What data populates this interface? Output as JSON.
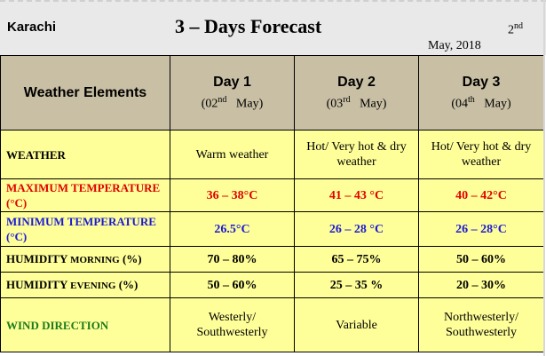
{
  "header": {
    "city": "Karachi",
    "title": "3 – Days Forecast",
    "issue_day": "2",
    "issue_day_suffix": "nd",
    "issue_month_year": "May, 2018"
  },
  "table": {
    "corner_label": "Weather Elements",
    "days": [
      {
        "name": "Day 1",
        "date_num": "02",
        "date_suffix": "nd",
        "month": "May"
      },
      {
        "name": "Day 2",
        "date_num": "03",
        "date_suffix": "rd",
        "month": "May"
      },
      {
        "name": "Day 3",
        "date_num": "04",
        "date_suffix": "th",
        "month": "May"
      }
    ],
    "rows": {
      "weather": {
        "label": "WEATHER",
        "values": [
          "Warm weather",
          "Hot/ Very hot & dry  weather",
          "Hot/ Very hot & dry  weather"
        ]
      },
      "max_temp": {
        "label": "MAXIMUM TEMPERATURE (°C)",
        "values": [
          "36 – 38°C",
          "41 – 43 °C",
          "40 – 42°C"
        ]
      },
      "min_temp": {
        "label": "MINIMUM TEMPERATURE (°C)",
        "values": [
          "26.5°C",
          "26 – 28 °C",
          "26 – 28°C"
        ]
      },
      "humidity_morning": {
        "label_main": "HUMIDITY ",
        "label_mid": "MORNING",
        "label_end": " (%)",
        "values": [
          "70 – 80%",
          "65 – 75%",
          "50 – 60%"
        ]
      },
      "humidity_evening": {
        "label_main": "HUMIDITY ",
        "label_mid": "EVENING",
        "label_end": " (%)",
        "values": [
          "50 – 60%",
          "25 – 35 %",
          "20 – 30%"
        ]
      },
      "wind": {
        "label": "WIND DIRECTION",
        "values": [
          "Westerly/ Southwesterly",
          "Variable",
          "Northwesterly/ Southwesterly"
        ]
      }
    },
    "colors": {
      "header_bg": "#c8bfa4",
      "row_bg": "#ffff99",
      "max_temp": "#e00000",
      "min_temp": "#1a1ad6",
      "wind_label": "#1a7a1a"
    }
  }
}
